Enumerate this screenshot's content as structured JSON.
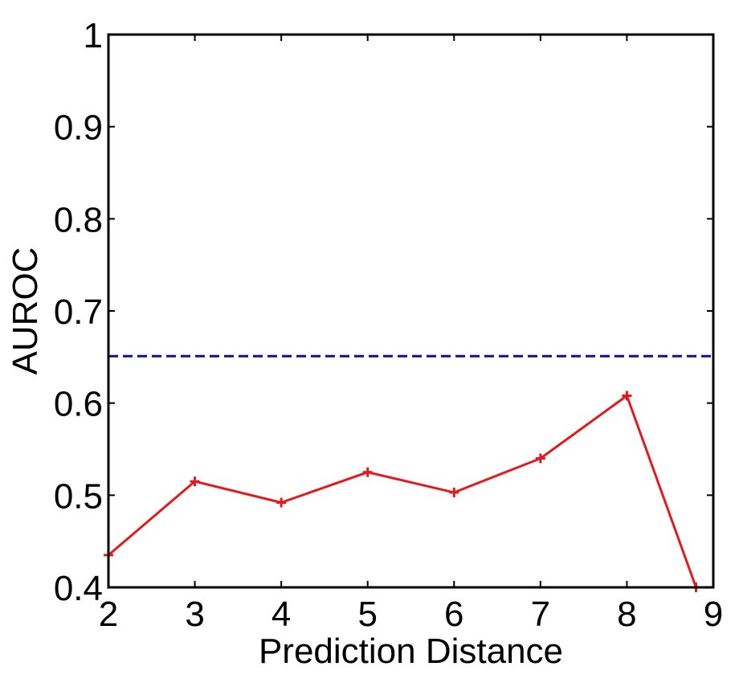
{
  "chart_data": {
    "type": "line",
    "xlabel": "Prediction Distance",
    "ylabel": "AUROC",
    "xlim": [
      2,
      9
    ],
    "ylim": [
      0.4,
      1.0
    ],
    "x_ticks": [
      "2",
      "3",
      "4",
      "5",
      "6",
      "7",
      "8",
      "9"
    ],
    "y_ticks": [
      "0.4",
      "0.5",
      "0.6",
      "0.7",
      "0.8",
      "0.9",
      "1"
    ],
    "grid": false,
    "series": [
      {
        "x": [
          2,
          3,
          4,
          5,
          6,
          7,
          8,
          8.8
        ],
        "y": [
          0.435,
          0.515,
          0.492,
          0.525,
          0.503,
          0.54,
          0.608,
          0.4
        ],
        "color": "#e31a1c",
        "line_style": "solid",
        "marker": "plus"
      },
      {
        "x": [
          2,
          9
        ],
        "y": [
          0.651,
          0.651
        ],
        "color": "#0a10a0",
        "line_style": "dashed",
        "marker": "none"
      }
    ]
  }
}
